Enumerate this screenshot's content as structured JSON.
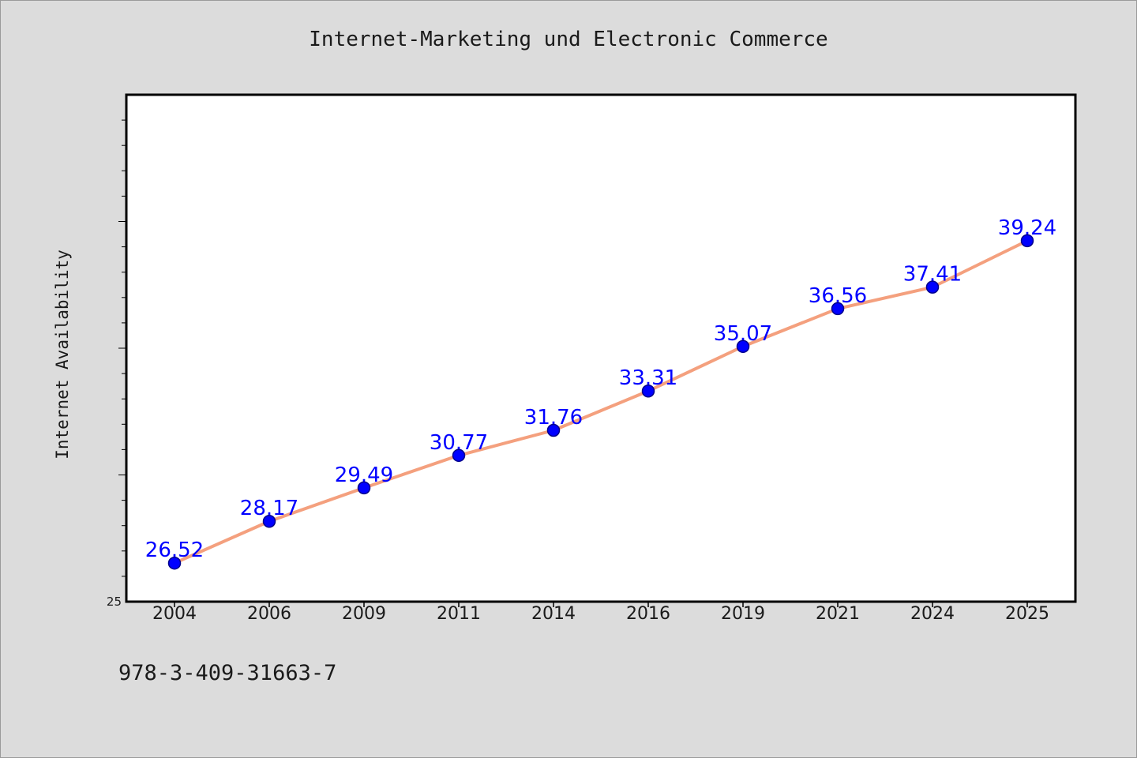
{
  "chart_data": {
    "type": "line",
    "title": "Internet-Marketing und Electronic Commerce",
    "xlabel": "",
    "ylabel": "Internet Availability",
    "categories": [
      "2004",
      "2006",
      "2009",
      "2011",
      "2014",
      "2016",
      "2019",
      "2021",
      "2024",
      "2025"
    ],
    "series": [
      {
        "values": [
          26.52,
          28.17,
          29.49,
          30.77,
          31.76,
          33.31,
          35.07,
          36.56,
          37.41,
          39.24
        ]
      }
    ],
    "ylim": [
      25,
      45
    ],
    "yticks": [
      25
    ],
    "grid": false,
    "legend": "none",
    "colors": {
      "line": "#f4a07e",
      "marker": "#0000ff",
      "marker_edge": "#00008b",
      "data_label": "#0000ff",
      "background": "#dcdcdc",
      "plot_area": "#ffffff"
    }
  },
  "footer": {
    "isbn": "978-3-409-31663-7"
  }
}
